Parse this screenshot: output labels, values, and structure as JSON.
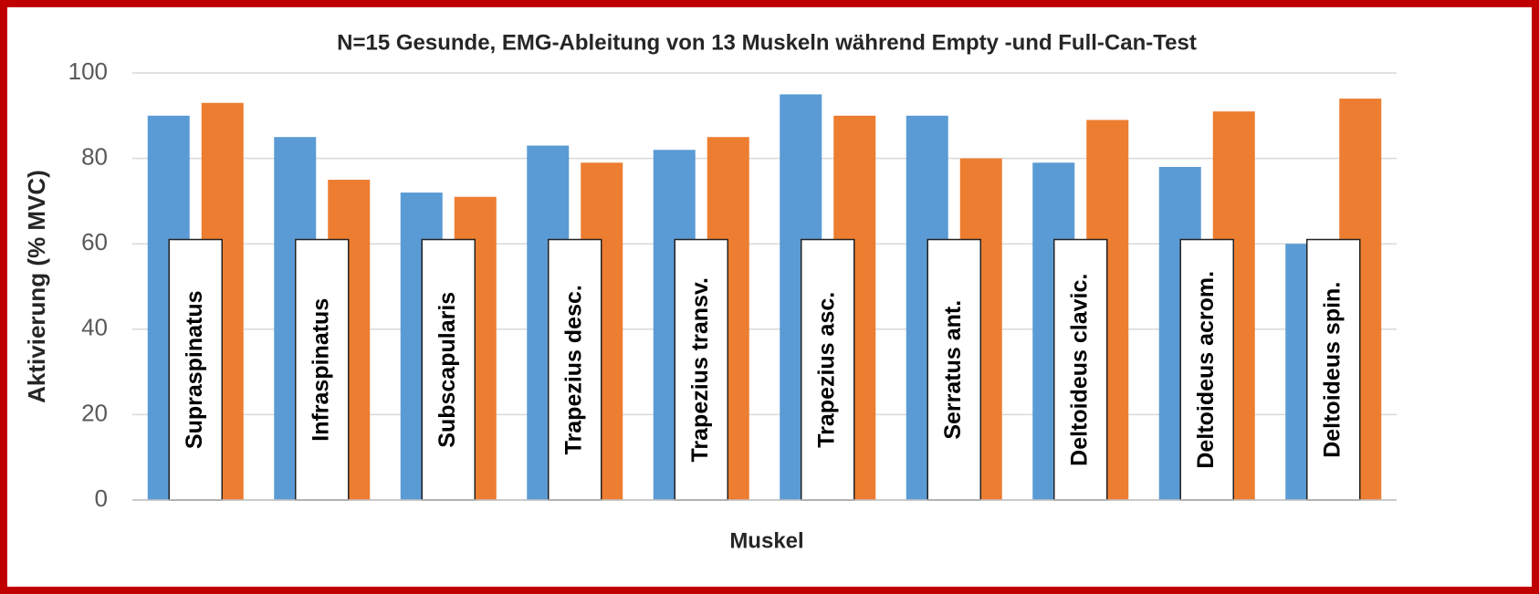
{
  "chart_data": {
    "type": "bar",
    "title": "N=15 Gesunde, EMG-Ableitung von 13 Muskeln während Empty -und Full-Can-Test",
    "x_label": "Muskel",
    "y_label": "Aktivierung (% MVC)",
    "categories": [
      "Supraspinatus",
      "Infraspinatus",
      "Subscapularis",
      "Trapezius desc.",
      "Trapezius transv.",
      "Trapezius asc.",
      "Serratus ant.",
      "Deltoideus clavic.",
      "Deltoideus acrom.",
      "Deltoideus spin."
    ],
    "series": [
      {
        "color": "#5b9bd5",
        "values": [
          90,
          85,
          72,
          83,
          82,
          95,
          90,
          79,
          78,
          60
        ]
      },
      {
        "color": "#ed7d31",
        "values": [
          93,
          75,
          71,
          79,
          85,
          90,
          80,
          89,
          91,
          94
        ]
      }
    ],
    "ylim": [
      0,
      100
    ],
    "yticks": [
      0,
      20,
      40,
      60,
      80,
      100
    ],
    "grid": true
  }
}
